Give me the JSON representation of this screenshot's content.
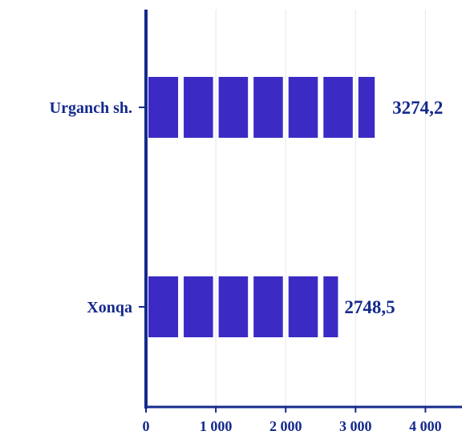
{
  "chart_data": {
    "type": "bar",
    "orientation": "horizontal",
    "categories": [
      "Urganch sh.",
      "Xonqa"
    ],
    "values": [
      3274.2,
      2748.5
    ],
    "value_labels": [
      "3274,2",
      "2748,5"
    ],
    "xlim": [
      0,
      4500
    ],
    "x_ticks": [
      0,
      1000,
      2000,
      3000,
      4000
    ],
    "x_tick_labels": [
      "0",
      "1 000",
      "2 000",
      "3 000",
      "4 000"
    ],
    "grid": "vertical gridlines",
    "legend": "none",
    "bar_style": "segmented blocks",
    "colors": {
      "bar": "#3b2bc4",
      "axis": "#152a8c",
      "text": "#152a8c",
      "grid": "#e6e6e6"
    }
  }
}
